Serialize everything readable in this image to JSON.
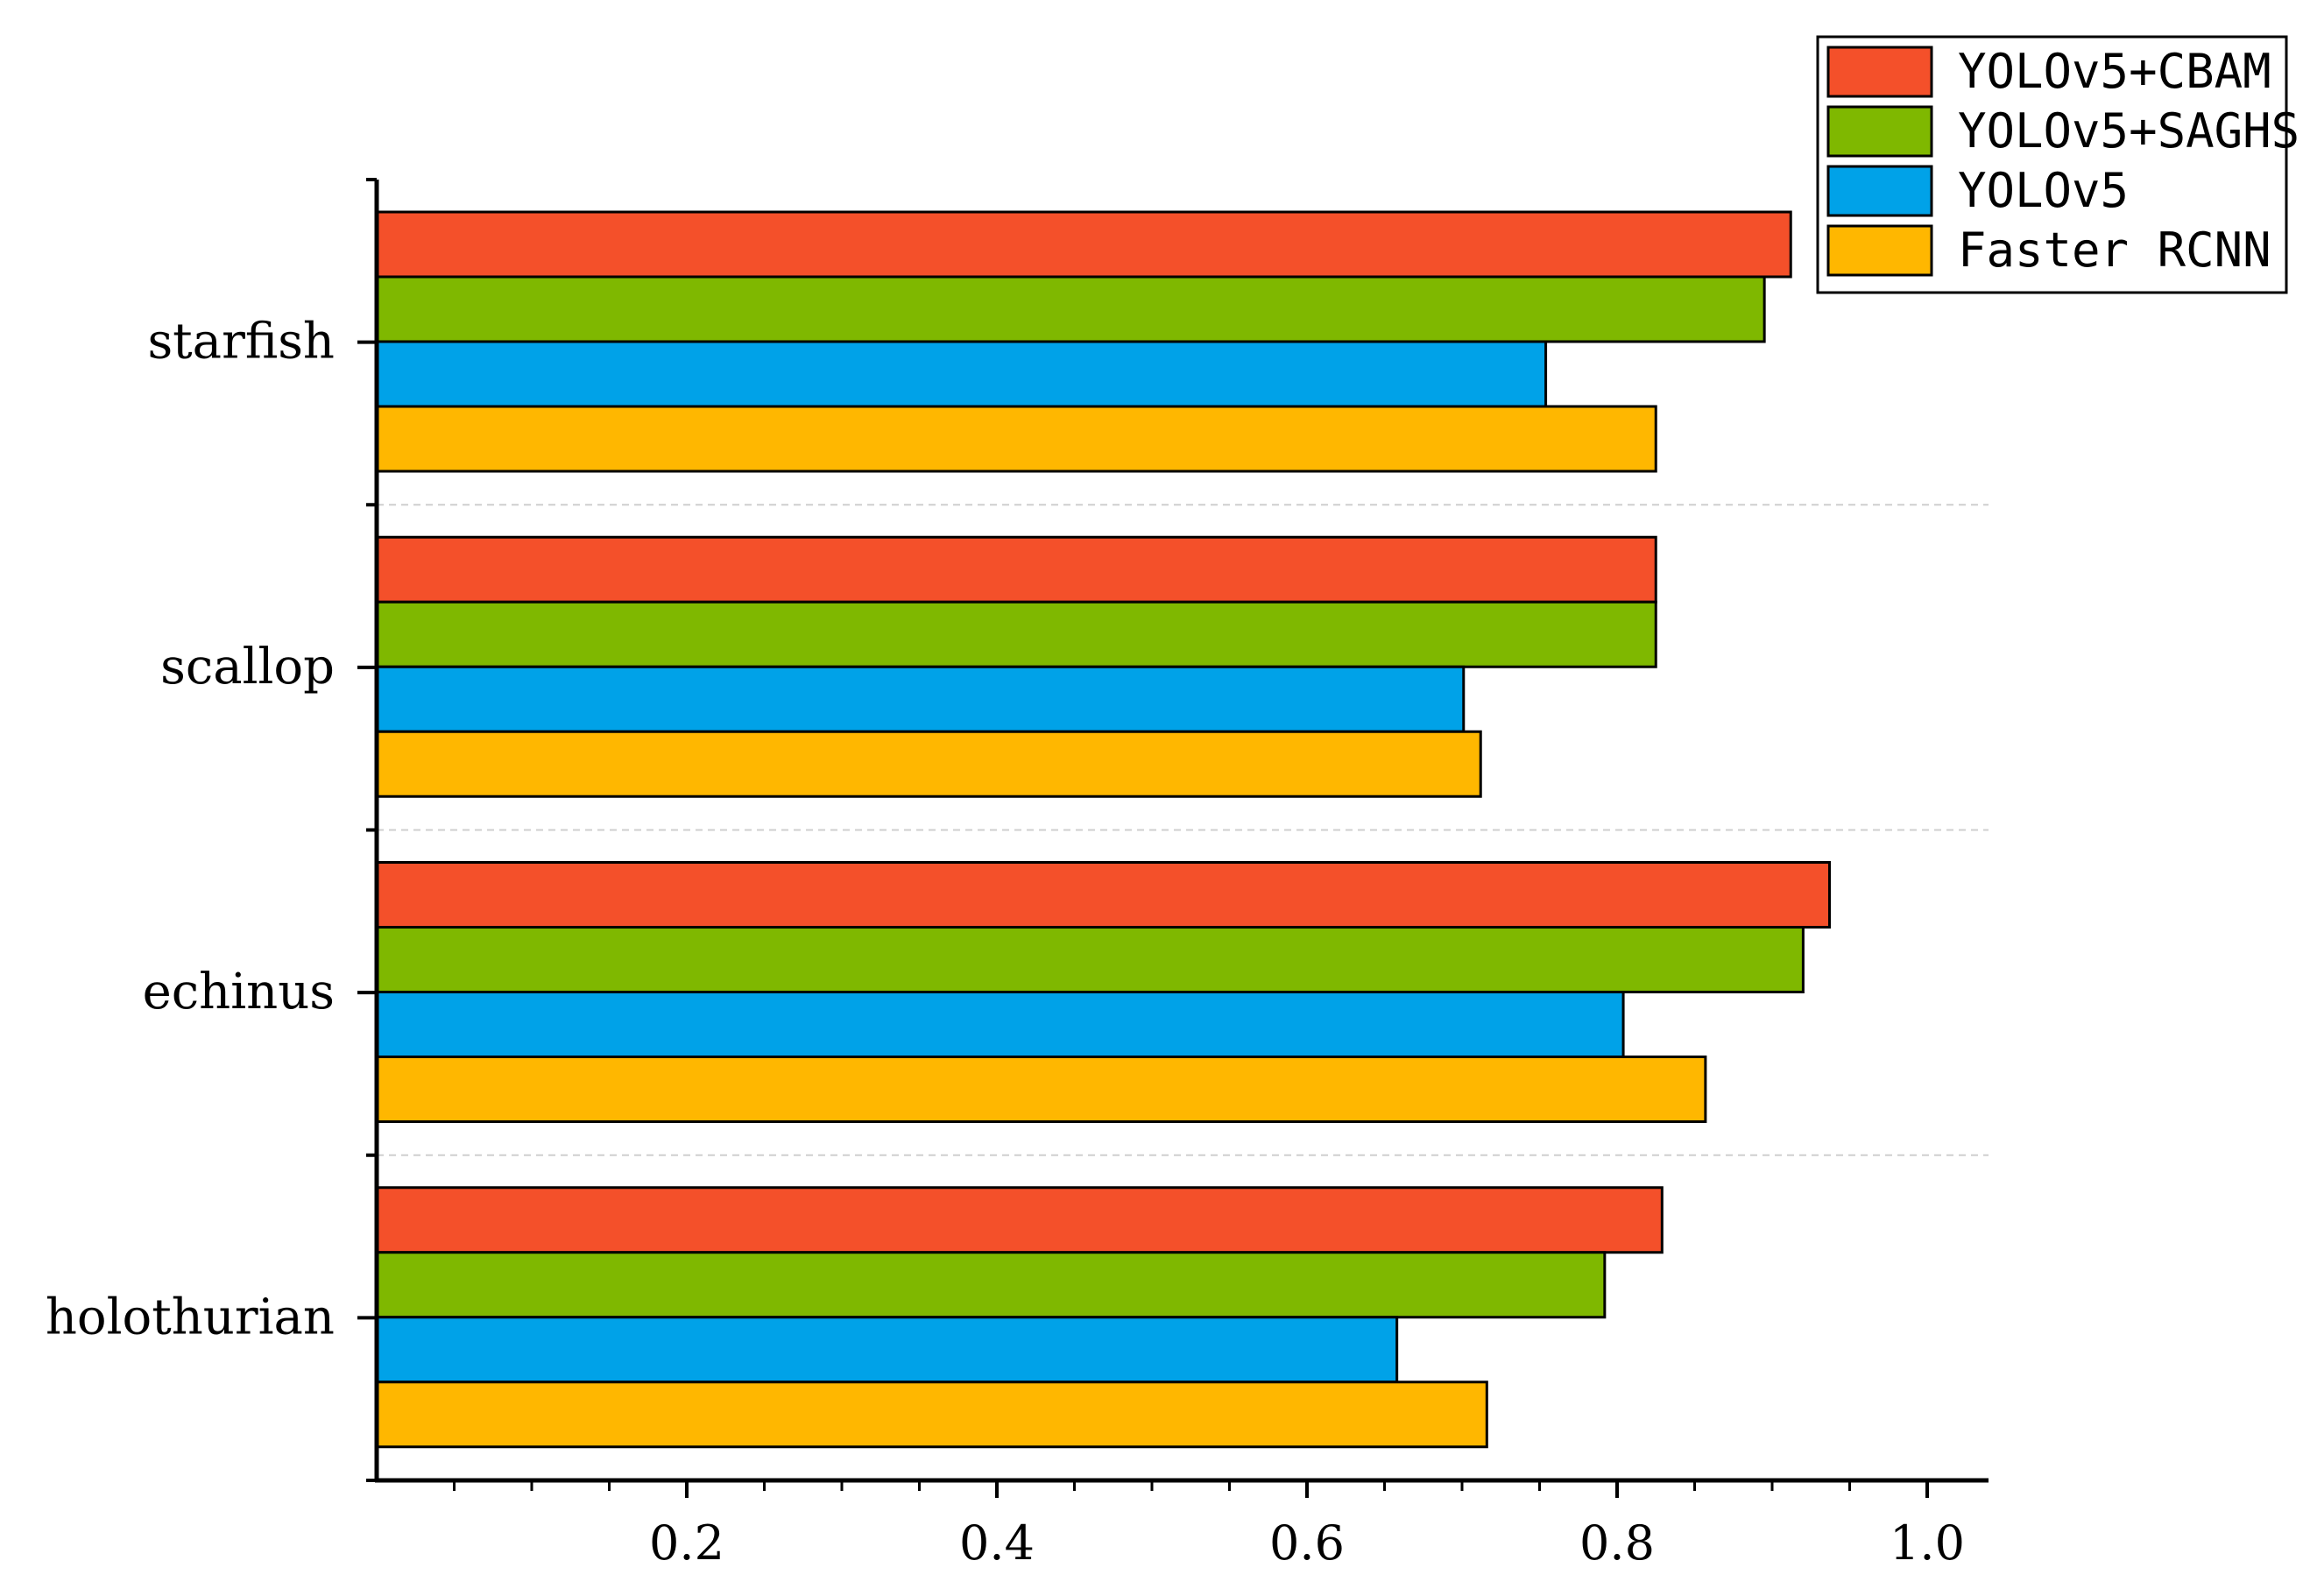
{
  "chart_data": {
    "type": "bar",
    "orientation": "horizontal",
    "title": "",
    "xlabel": "",
    "ylabel": "",
    "xlim": [
      0.0,
      1.0
    ],
    "xticks": [
      0.2,
      0.4,
      0.6,
      0.8,
      1.0
    ],
    "xtick_labels": [
      "0.2",
      "0.4",
      "0.6",
      "0.8",
      "1.0"
    ],
    "categories": [
      "starfish",
      "scallop",
      "echinus",
      "holothurian"
    ],
    "series": [
      {
        "name": "YOLOv5+CBAM",
        "color": "#f4502a",
        "values": [
          0.912,
          0.825,
          0.937,
          0.829
        ]
      },
      {
        "name": "YOLOv5+SAGHS",
        "color": "#7fb800",
        "values": [
          0.895,
          0.825,
          0.92,
          0.792
        ]
      },
      {
        "name": "YOLOv5",
        "color": "#00a2e8",
        "values": [
          0.754,
          0.701,
          0.804,
          0.658
        ]
      },
      {
        "name": "Faster RCNN",
        "color": "#ffb700",
        "values": [
          0.825,
          0.712,
          0.857,
          0.716
        ]
      }
    ],
    "legend_position": "top-right",
    "grid": "dashed separators between categories"
  }
}
